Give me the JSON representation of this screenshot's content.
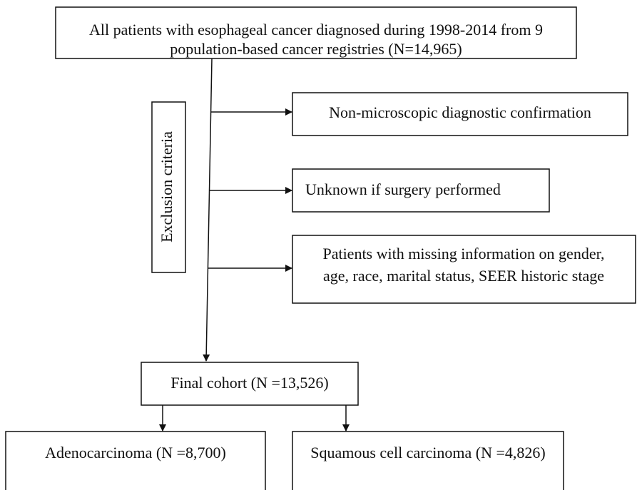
{
  "nodes": [
    {
      "lines": [
        "All patients with esophageal cancer diagnosed during 1998-2014 from 9",
        "population-based cancer registries (N=14,965)"
      ]
    },
    {
      "lines": [
        "Non-microscopic diagnostic confirmation"
      ]
    },
    {
      "lines": [
        "Unknown if surgery performed"
      ]
    },
    {
      "lines": [
        "Patients with missing information on gender,",
        "age, race, marital status, SEER historic stage"
      ]
    },
    {
      "lines": [
        "Final cohort (N =13,526)"
      ]
    },
    {
      "lines": [
        "Adenocarcinoma (N =8,700)"
      ]
    },
    {
      "lines": [
        "Squamous cell carcinoma (N =4,826)"
      ]
    }
  ],
  "side_label": "Exclusion criteria"
}
